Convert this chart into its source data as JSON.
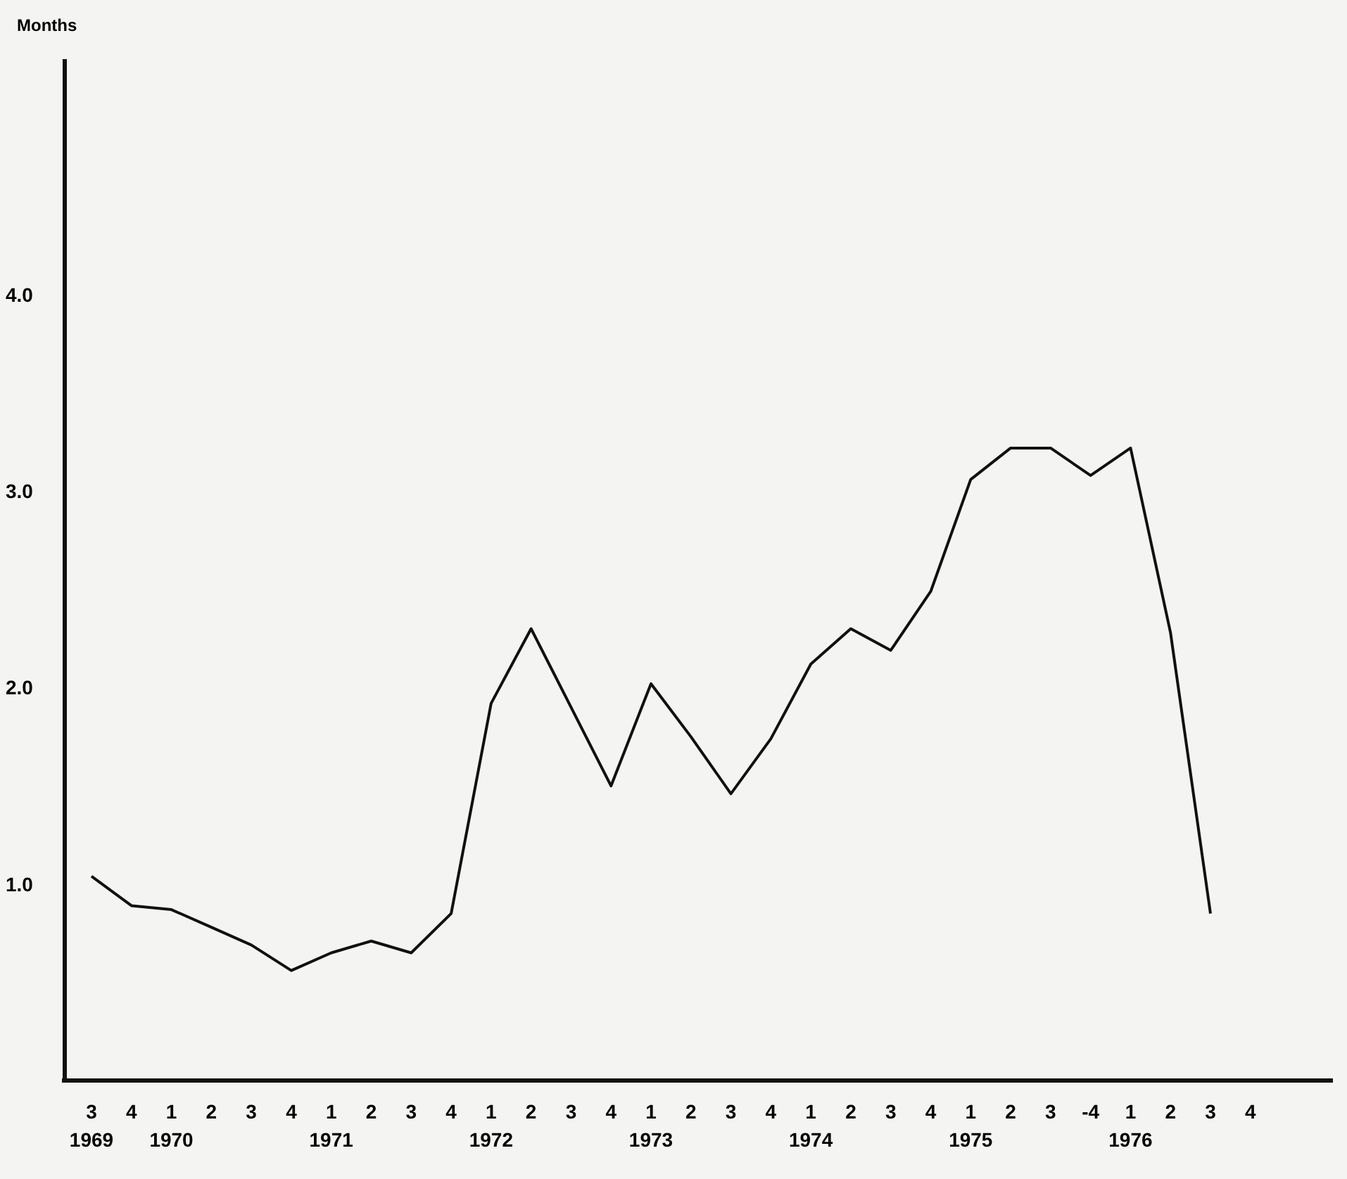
{
  "chart_data": {
    "type": "line",
    "ylabel": "Months",
    "categories": [
      "3\n1969",
      "4",
      "1\n1970",
      "2",
      "3",
      "4",
      "1\n1971",
      "2",
      "3",
      "4",
      "1\n1972",
      "2",
      "3",
      "4",
      "1\n1973",
      "2",
      "3",
      "4",
      "1\n1974",
      "2",
      "3",
      "4",
      "1\n1975",
      "2",
      "3",
      "-4",
      "1\n1976",
      "2",
      "3",
      "4"
    ],
    "series": [
      {
        "color": "#111111",
        "values": [
          1.04,
          0.89,
          0.87,
          0.78,
          0.69,
          0.56,
          0.65,
          0.71,
          0.65,
          0.85,
          1.92,
          2.3,
          1.9,
          1.5,
          2.02,
          1.75,
          1.46,
          1.74,
          2.12,
          2.3,
          2.19,
          2.49,
          3.06,
          3.22,
          3.22,
          3.08,
          3.22,
          2.28,
          0.85,
          null
        ]
      }
    ],
    "ylim": [
      0,
      5.2
    ],
    "yticks": [
      {
        "value": 1,
        "label": "1.0"
      },
      {
        "value": 2,
        "label": "2.0"
      },
      {
        "value": 3,
        "label": "3.0"
      },
      {
        "value": 4,
        "label": "4.0"
      }
    ],
    "grid": false,
    "marker": "none",
    "line_style": "solid"
  }
}
